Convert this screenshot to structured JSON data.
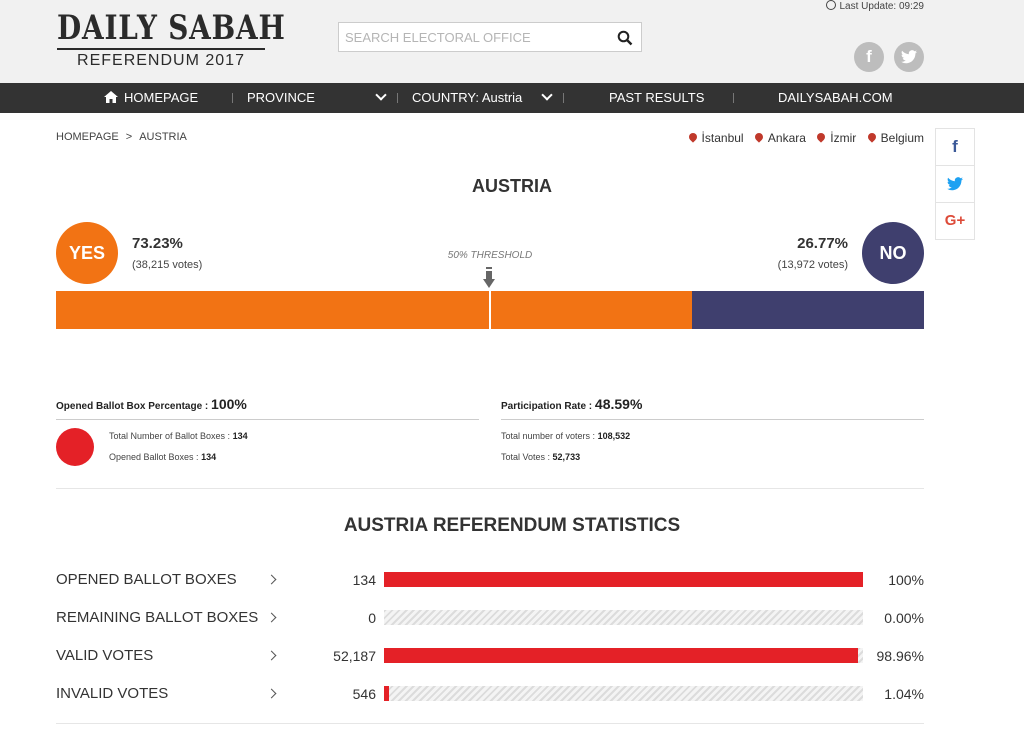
{
  "header": {
    "logo_main": "DAILY SABAH",
    "logo_sub": "REFERENDUM 2017",
    "search_placeholder": "SEARCH ELECTORAL OFFICE",
    "last_update": "Last Update: 09:29"
  },
  "nav": [
    {
      "label": "HOMEPAGE"
    },
    {
      "label": "PROVINCE"
    },
    {
      "label": "COUNTRY: Austria"
    },
    {
      "label": "PAST RESULTS"
    },
    {
      "label": "DAILYSABAH.COM"
    }
  ],
  "breadcrumb": {
    "home": "HOMEPAGE",
    "current": "AUSTRIA"
  },
  "cities": [
    "İstanbul",
    "Ankara",
    "İzmir",
    "Belgium"
  ],
  "country_title": "AUSTRIA",
  "result": {
    "yes_label": "YES",
    "yes_pct": "73.23%",
    "yes_votes": "(38,215 votes)",
    "yes_fraction": 0.7323,
    "no_label": "NO",
    "no_pct": "26.77%",
    "no_votes": "(13,972 votes)",
    "threshold_label": "50% THRESHOLD",
    "colors": {
      "yes": "#f27314",
      "no": "#3f3f6e"
    }
  },
  "ballot": {
    "label": "Opened Ballot Box Percentage :",
    "value": "100%",
    "total_label": "Total Number of Ballot Boxes :",
    "total": "134",
    "opened_label": "Opened Ballot Boxes :",
    "opened": "134"
  },
  "participation": {
    "label": "Participation Rate :",
    "value": "48.59%",
    "voters_label": "Total number of voters :",
    "voters": "108,532",
    "votes_label": "Total Votes :",
    "votes": "52,733"
  },
  "statistics": {
    "title": "AUSTRIA REFERENDUM STATISTICS",
    "rows": [
      {
        "label": "OPENED BALLOT BOXES",
        "value": "134",
        "pct": "100%",
        "fraction": 1.0
      },
      {
        "label": "REMAINING BALLOT BOXES",
        "value": "0",
        "pct": "0.00%",
        "fraction": 0.0
      },
      {
        "label": "VALID VOTES",
        "value": "52,187",
        "pct": "98.96%",
        "fraction": 0.9896
      },
      {
        "label": "INVALID VOTES",
        "value": "546",
        "pct": "1.04%",
        "fraction": 0.0104
      }
    ]
  },
  "icons": [
    "home-icon",
    "search-icon",
    "clock-icon",
    "facebook-icon",
    "twitter-icon",
    "google-plus-icon",
    "location-pin-icon",
    "chevron-down-icon",
    "chevron-right-icon"
  ]
}
